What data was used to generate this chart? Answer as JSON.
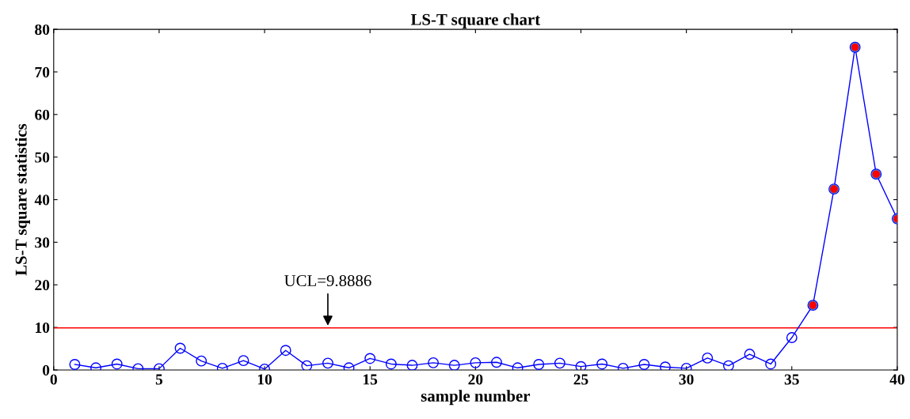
{
  "chart_data": {
    "type": "line",
    "title": "LS-T square chart",
    "xlabel": "sample number",
    "ylabel": "LS-T square statistics",
    "x": [
      1,
      2,
      3,
      4,
      5,
      6,
      7,
      8,
      9,
      10,
      11,
      12,
      13,
      14,
      15,
      16,
      17,
      18,
      19,
      20,
      21,
      22,
      23,
      24,
      25,
      26,
      27,
      28,
      29,
      30,
      31,
      32,
      33,
      34,
      35,
      36,
      37,
      38,
      39,
      40
    ],
    "series": [
      {
        "color": "#0000ff",
        "marker": "circle",
        "values": [
          1.3,
          0.5,
          1.4,
          0.3,
          0.3,
          5.1,
          2.1,
          0.4,
          2.2,
          0.2,
          4.6,
          1.0,
          1.6,
          0.5,
          2.7,
          1.4,
          1.1,
          1.7,
          1.1,
          1.7,
          1.8,
          0.5,
          1.3,
          1.6,
          0.8,
          1.4,
          0.4,
          1.3,
          0.7,
          0.4,
          2.8,
          1.0,
          3.7,
          1.4,
          7.6,
          15.2,
          42.5,
          75.8,
          46.0,
          35.5
        ]
      },
      {
        "type": "scatter",
        "color": "#ff0000",
        "marker": "circle",
        "x": [
          36,
          37,
          38,
          39,
          40
        ],
        "values": [
          15.2,
          42.5,
          75.8,
          46.0,
          35.5
        ]
      }
    ],
    "ref_lines": [
      {
        "axis": "y",
        "value": 9.8886,
        "color": "#ff0000"
      }
    ],
    "annotations": [
      {
        "text": "UCL=9.8886",
        "x": 13,
        "y": 9.8886
      }
    ],
    "xlim": [
      0,
      40
    ],
    "xticks": [
      0,
      5,
      10,
      15,
      20,
      25,
      30,
      35,
      40
    ],
    "ylim": [
      0,
      80
    ],
    "yticks": [
      0,
      10,
      20,
      30,
      40,
      50,
      60,
      70,
      80
    ],
    "grid": false,
    "legend": false
  }
}
